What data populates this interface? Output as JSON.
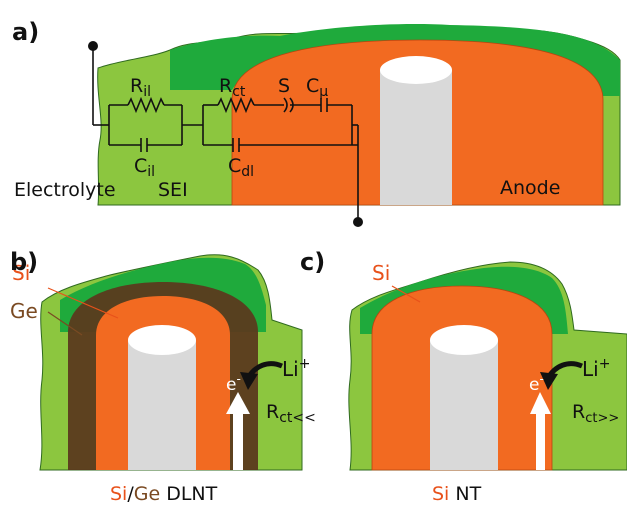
{
  "panels": {
    "a": {
      "letter": "a)",
      "circuit": {
        "r_il": "R",
        "r_il_sub": "il",
        "c_il": "C",
        "c_il_sub": "il",
        "r_ct": "R",
        "r_ct_sub": "ct",
        "c_dl": "C",
        "c_dl_sub": "dl",
        "s": "S",
        "c_mu": "C",
        "c_mu_sub": "μ"
      },
      "regions": {
        "electrolyte": "Electrolyte",
        "sei": "SEI",
        "anode": "Anode"
      }
    },
    "b": {
      "letter": "b)",
      "si": "Si",
      "ge": "Ge",
      "li": "Li",
      "li_sup": "+",
      "e": "e",
      "e_sup": "-",
      "rct": "R",
      "rct_sub": "ct<<",
      "caption_si": "Si",
      "caption_slash": "/",
      "caption_ge": "Ge",
      "caption_rest": " DLNT"
    },
    "c": {
      "letter": "c)",
      "si": "Si",
      "li": "Li",
      "li_sup": "+",
      "e": "e",
      "e_sup": "-",
      "rct": "R",
      "rct_sub": "ct>>",
      "caption_si": "Si",
      "caption_rest": " NT"
    }
  },
  "colors": {
    "electrolyte_green": "#8cc63f",
    "sei_green": "#1faa3c",
    "si_orange": "#f26a21",
    "si_orange_dark": "#e65a17",
    "ge_brown": "#5b3a1e",
    "core_gray": "#d9d9d9",
    "arrow": "#ffffff",
    "text_dark": "#1a1a1a",
    "text_si": "#e8511a",
    "text_ge": "#7a4a22"
  }
}
